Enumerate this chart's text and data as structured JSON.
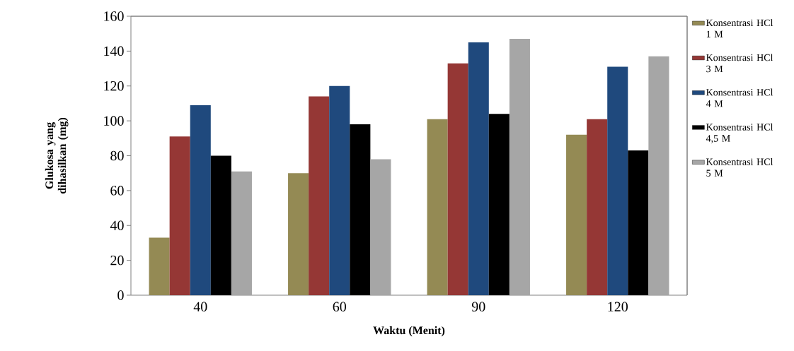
{
  "chart_data": {
    "type": "bar",
    "xlabel": "Waktu  (Menit)",
    "ylabel": "Glukosa yang dihasilkan (mg)",
    "categories": [
      "40",
      "60",
      "90",
      "120"
    ],
    "series": [
      {
        "name": "Konsentrasi HCl 1 M",
        "color": "#948a54",
        "values": [
          33,
          70,
          101,
          92
        ]
      },
      {
        "name": "Konsentrasi HCl 3 M",
        "color": "#953735",
        "values": [
          91,
          114,
          133,
          101
        ]
      },
      {
        "name": "Konsentrasi HCl 4 M",
        "color": "#1f497d",
        "values": [
          109,
          120,
          145,
          131
        ]
      },
      {
        "name": "Konsentrasi HCl 4,5 M",
        "color": "#000000",
        "values": [
          80,
          98,
          104,
          83
        ]
      },
      {
        "name": "Konsentrasi HCl 5 M",
        "color": "#a6a6a6",
        "values": [
          71,
          78,
          147,
          137
        ]
      }
    ],
    "ylim": [
      0,
      160
    ],
    "yticks": [
      0,
      20,
      40,
      60,
      80,
      100,
      120,
      140,
      160
    ],
    "legend": "right"
  }
}
